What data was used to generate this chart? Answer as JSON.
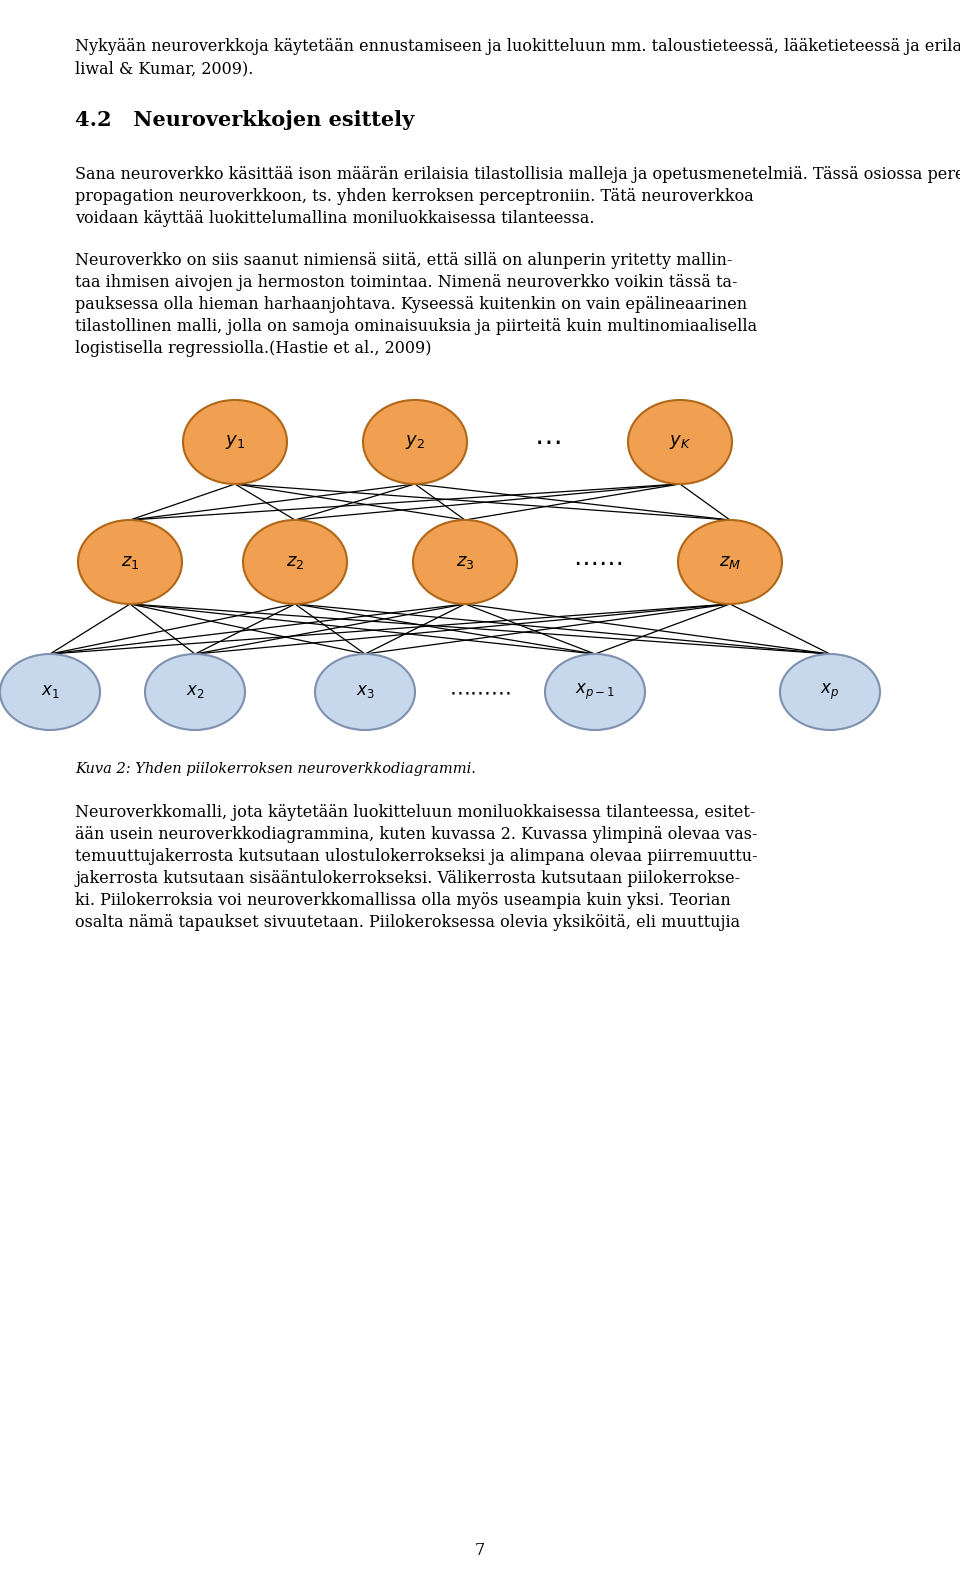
{
  "page_bg": "#ffffff",
  "text_color": "#000000",
  "node_orange_face": "#F0A050",
  "node_orange_edge": "#B06818",
  "node_blue_face": "#C8D8EC",
  "node_blue_edge": "#8090B0",
  "line_color": "#000000",
  "line_width": 0.9,
  "paragraph1": "Nykyään neuroverkkoja käytetään ennustamiseen ja luokitteluun mm. taloustieteessä, lääketieteessä ja erilaisissa teollisuuden suunnittelu- ja valmistusprosesseissa (Pa-\nliwal & Kumar, 2009).",
  "section_title": "4.2   Neuroverkkojen esittely",
  "paragraph2": "Sana neuroverkko käsittää ison määrän erilaisia tilastollisia malleja ja opetusmenetelmiä. Tässä osiossa perehdytään paljon käytettyyn yhden piilokerroksen back-\npropagation neuroverkkoon, ts. yhden kerroksen perceptroniin. Tätä neuroverkkoa\nvoidaan käyttää luokittelumallina moniluokkaisessa tilanteessa.",
  "paragraph3": "Neuroverkko on siis saanut nimiensä siitä, että sillä on alunperin yritetty mallin-\ntaa ihmisen aivojen ja hermoston toimintaa. Nimenä neuroverkko voikin tässä ta-\npauksessa olla hieman harhaanjohtava. Kyseessä kuitenkin on vain epälineaarinen\ntilastollinen malli, jolla on samoja ominaisuuksia ja piirteitä kuin multinomiaalisella\nlogistisella regressiolla.(Hastie et al., 2009)",
  "caption": "Kuva 2: Yhden piilokerroksen neuroverkkodiagrammi.",
  "paragraph4": "Neuroverkkomalli, jota käytetään luokitteluun moniluokkaisessa tilanteessa, esitet-\nään usein neuroverkkodiagrammina, kuten kuvassa 2. Kuvassa ylimpinä olevaa vas-\ntemuuttujakerrosta kutsutaan ulostulokerrokseksi ja alimpana olevaa piirremuuttu-\njakerrosta kutsutaan sisääntulokerrokseksi. Välikerrosta kutsutaan piilokerrokse-\nki. Piilokerroksia voi neuroverkkomallissa olla myös useampia kuin yksi. Teorian\nosalta nämä tapaukset sivuutetaan. Piilokeroksessa olevia yksiköitä, eli muuttujia",
  "page_number": "7",
  "font_size_body": 11.5,
  "font_size_title": 15,
  "font_size_caption": 10.5
}
